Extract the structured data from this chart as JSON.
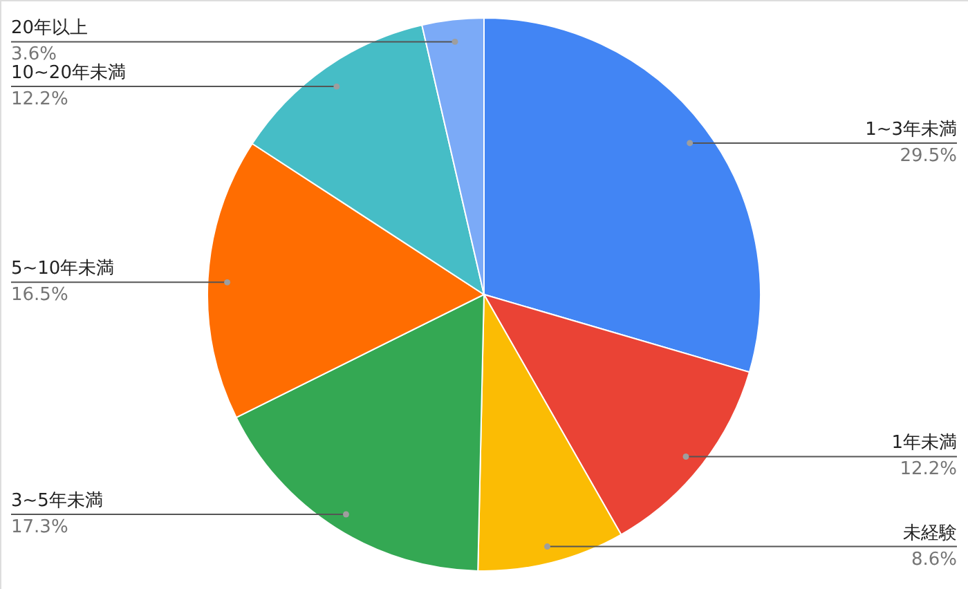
{
  "chart_data": {
    "type": "pie",
    "categories": [
      "1~3年未満",
      "1年未満",
      "未経験",
      "3~5年未満",
      "5~10年未満",
      "10~20年未満",
      "20年以上"
    ],
    "values": [
      29.5,
      12.2,
      8.6,
      17.3,
      16.5,
      12.2,
      3.6
    ],
    "value_labels": [
      "29.5%",
      "12.2%",
      "8.6%",
      "17.3%",
      "16.5%",
      "12.2%",
      "3.6%"
    ],
    "colors": [
      "#4285f4",
      "#ea4335",
      "#fbbc04",
      "#34a853",
      "#ff6d01",
      "#46bdc6",
      "#7baaf7"
    ]
  }
}
